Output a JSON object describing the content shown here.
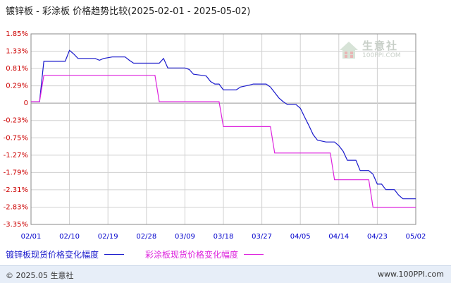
{
  "title": "镀锌板 - 彩涂板 价格趋势比较(2025-02-01 - 2025-05-02)",
  "watermark": {
    "name": "生意社",
    "url": "100PPI.COM"
  },
  "footer": {
    "left": "© 2025.05 生意社",
    "right": "www.100PPI.com"
  },
  "colors": {
    "series1": "#1a1acc",
    "series2": "#dd22dd",
    "y_ticks": "#cc0000",
    "x_ticks": "#0000cc",
    "grid": "#d0d0d0",
    "zero_line": "#999999"
  },
  "chart_data": {
    "type": "line",
    "title": "镀锌板 - 彩涂板 价格趋势比较(2025-02-01 - 2025-05-02)",
    "xlabel": "",
    "ylabel": "",
    "x_ticks": [
      "02/01",
      "02/10",
      "02/19",
      "02/28",
      "03/09",
      "03/18",
      "03/27",
      "04/05",
      "04/14",
      "04/23",
      "05/02"
    ],
    "y_ticks": [
      "1.85%",
      "1.33%",
      "0.81%",
      "0.29%",
      "0",
      "-0.23%",
      "-0.75%",
      "-1.27%",
      "-1.79%",
      "-2.31%",
      "-2.83%",
      "-3.35%"
    ],
    "ylim": [
      -3.35,
      1.85
    ],
    "xlim": [
      "2025-02-01",
      "2025-05-02"
    ],
    "grid": true,
    "legend_position": "bottom",
    "series": [
      {
        "name": "镀锌板现货价格变化幅度",
        "color": "#1a1acc",
        "step": true,
        "points": [
          [
            "2025-02-01",
            0
          ],
          [
            "2025-02-03",
            0
          ],
          [
            "2025-02-04",
            1.1
          ],
          [
            "2025-02-05",
            1.1
          ],
          [
            "2025-02-09",
            1.1
          ],
          [
            "2025-02-10",
            1.4
          ],
          [
            "2025-02-11",
            1.3
          ],
          [
            "2025-02-12",
            1.18
          ],
          [
            "2025-02-16",
            1.18
          ],
          [
            "2025-02-17",
            1.13
          ],
          [
            "2025-02-18",
            1.18
          ],
          [
            "2025-02-20",
            1.22
          ],
          [
            "2025-02-23",
            1.22
          ],
          [
            "2025-02-24",
            1.13
          ],
          [
            "2025-02-25",
            1.05
          ],
          [
            "2025-03-03",
            1.05
          ],
          [
            "2025-03-04",
            1.18
          ],
          [
            "2025-03-05",
            0.92
          ],
          [
            "2025-03-09",
            0.92
          ],
          [
            "2025-03-10",
            0.88
          ],
          [
            "2025-03-11",
            0.75
          ],
          [
            "2025-03-14",
            0.7
          ],
          [
            "2025-03-15",
            0.55
          ],
          [
            "2025-03-16",
            0.48
          ],
          [
            "2025-03-17",
            0.48
          ],
          [
            "2025-03-18",
            0.32
          ],
          [
            "2025-03-21",
            0.32
          ],
          [
            "2025-03-22",
            0.4
          ],
          [
            "2025-03-24",
            0.45
          ],
          [
            "2025-03-25",
            0.48
          ],
          [
            "2025-03-28",
            0.48
          ],
          [
            "2025-03-29",
            0.4
          ],
          [
            "2025-03-30",
            0.25
          ],
          [
            "2025-03-31",
            0.1
          ],
          [
            "2025-04-01",
            0.0
          ],
          [
            "2025-04-02",
            -0.08
          ],
          [
            "2025-04-04",
            -0.08
          ],
          [
            "2025-04-05",
            -0.18
          ],
          [
            "2025-04-06",
            -0.42
          ],
          [
            "2025-04-07",
            -0.65
          ],
          [
            "2025-04-08",
            -0.9
          ],
          [
            "2025-04-09",
            -1.05
          ],
          [
            "2025-04-11",
            -1.1
          ],
          [
            "2025-04-13",
            -1.1
          ],
          [
            "2025-04-14",
            -1.2
          ],
          [
            "2025-04-15",
            -1.35
          ],
          [
            "2025-04-16",
            -1.6
          ],
          [
            "2025-04-18",
            -1.6
          ],
          [
            "2025-04-19",
            -1.88
          ],
          [
            "2025-04-21",
            -1.88
          ],
          [
            "2025-04-22",
            -1.98
          ],
          [
            "2025-04-23",
            -2.25
          ],
          [
            "2025-04-24",
            -2.25
          ],
          [
            "2025-04-25",
            -2.4
          ],
          [
            "2025-04-27",
            -2.4
          ],
          [
            "2025-04-28",
            -2.55
          ],
          [
            "2025-04-29",
            -2.65
          ],
          [
            "2025-05-02",
            -2.65
          ]
        ]
      },
      {
        "name": "彩涂板现货价格变化幅度",
        "color": "#dd22dd",
        "step": true,
        "points": [
          [
            "2025-02-01",
            0
          ],
          [
            "2025-02-03",
            0
          ],
          [
            "2025-02-04",
            0.72
          ],
          [
            "2025-03-02",
            0.72
          ],
          [
            "2025-03-03",
            0
          ],
          [
            "2025-03-17",
            0
          ],
          [
            "2025-03-18",
            -0.68
          ],
          [
            "2025-03-29",
            -0.68
          ],
          [
            "2025-03-30",
            -1.4
          ],
          [
            "2025-04-12",
            -1.4
          ],
          [
            "2025-04-13",
            -2.13
          ],
          [
            "2025-04-21",
            -2.13
          ],
          [
            "2025-04-22",
            -2.88
          ],
          [
            "2025-05-02",
            -2.88
          ]
        ]
      }
    ]
  }
}
